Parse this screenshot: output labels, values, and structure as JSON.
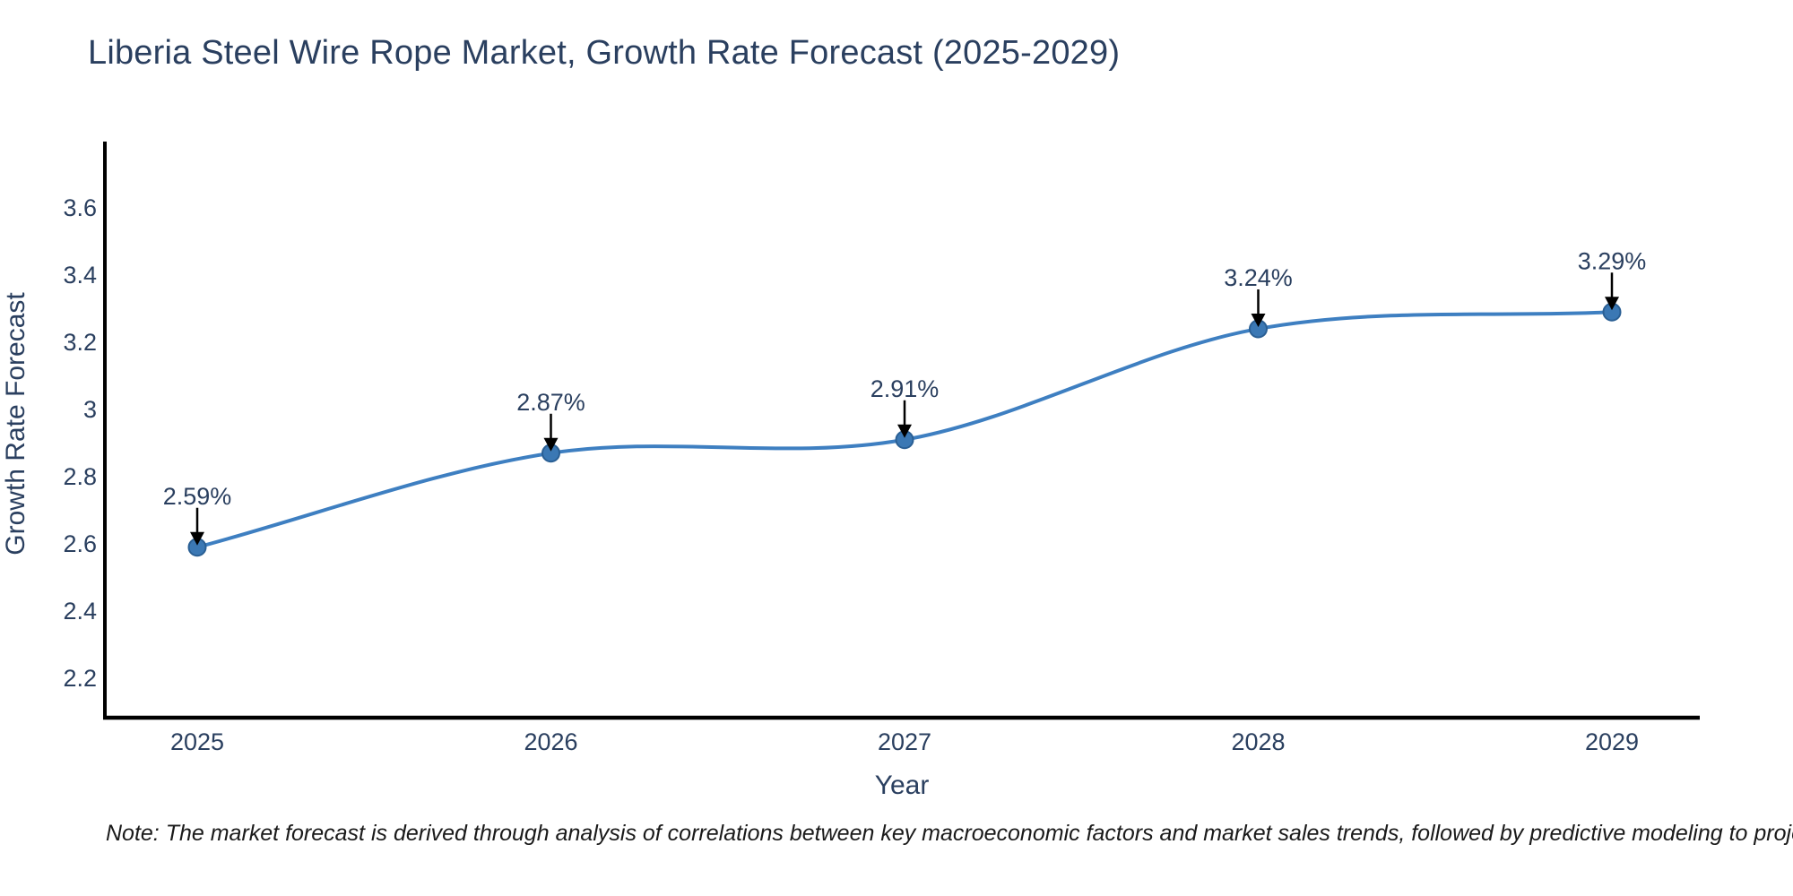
{
  "page": {
    "title": "Liberia Steel Wire Rope Market, Growth Rate Forecast (2025-2029)",
    "note": "Note: The market forecast is derived through analysis of correlations between key macroeconomic factors and market sales trends, followed by predictive modeling to project future sales"
  },
  "colors": {
    "line": "#3e7fc1",
    "marker_fill": "#3b78b4",
    "marker_edge": "#2a5f94",
    "text": "#2a3f5f",
    "spine": "#000000",
    "arrow": "#000000",
    "note_text": "#1a1a1a",
    "background": "#ffffff"
  },
  "chart_data": {
    "type": "line",
    "title": "Liberia Steel Wire Rope Market, Growth Rate Forecast (2025-2029)",
    "xlabel": "Year",
    "ylabel": "Growth Rate Forecast",
    "categories": [
      "2025",
      "2026",
      "2027",
      "2028",
      "2029"
    ],
    "series": [
      {
        "name": "Growth Rate Forecast",
        "values": [
          2.59,
          2.87,
          2.91,
          3.24,
          3.29
        ]
      }
    ],
    "point_labels": [
      "2.59%",
      "2.87%",
      "2.91%",
      "3.24%",
      "3.29%"
    ],
    "yticks": [
      2.2,
      2.4,
      2.6,
      2.8,
      3,
      3.2,
      3.4,
      3.6
    ],
    "ylim": [
      2.08,
      3.79
    ],
    "grid": false,
    "legend": false,
    "line_shape": "spline",
    "annotations": "value labels with black down-arrows above each marker"
  }
}
